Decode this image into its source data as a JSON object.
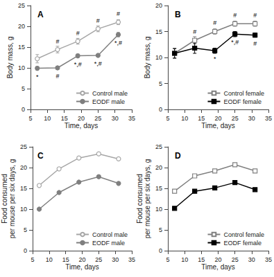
{
  "chart_data": [
    {
      "type": "line",
      "title": "A",
      "x_label": "Time, days",
      "y_label": "Body mass, g",
      "xlim": [
        5,
        35
      ],
      "xticks": [
        5,
        10,
        15,
        20,
        25,
        30,
        35
      ],
      "ylim": [
        0,
        25
      ],
      "yticks": [
        0,
        5,
        10,
        15,
        20,
        25
      ],
      "grid": false,
      "legend": "lower right",
      "series": [
        {
          "name": "Control male",
          "color": "#a6a6a6",
          "marker": "circle_open",
          "x": [
            7,
            13,
            19,
            25,
            31
          ],
          "values": [
            12.2,
            14.4,
            16.4,
            19.4,
            21.0
          ],
          "errors": [
            1.0,
            0.8,
            0.7,
            0.7,
            0.6
          ],
          "annotations": [
            null,
            "#",
            "#",
            "#",
            "#"
          ]
        },
        {
          "name": "EODF male",
          "color": "#7f7f7f",
          "marker": "circle",
          "x": [
            7,
            13,
            19,
            25,
            31
          ],
          "values": [
            9.9,
            10.0,
            12.9,
            13.0,
            18.0
          ],
          "errors": [
            0.4,
            0.4,
            0.4,
            0.3,
            0.5
          ],
          "annotations": [
            "*",
            "#",
            "*,#",
            "*,#",
            "*,#"
          ]
        }
      ]
    },
    {
      "type": "line",
      "title": "B",
      "x_label": "Time, days",
      "y_label": "Body mass, g",
      "xlim": [
        5,
        35
      ],
      "xticks": [
        5,
        10,
        15,
        20,
        25,
        30,
        35
      ],
      "ylim": [
        0,
        20
      ],
      "yticks": [
        0,
        5,
        10,
        15,
        20
      ],
      "grid": false,
      "legend": "lower right",
      "series": [
        {
          "name": "Control female",
          "color": "#808080",
          "marker": "square_open",
          "x": [
            7,
            13,
            19,
            25,
            31
          ],
          "values": [
            10.8,
            13.3,
            15.0,
            16.5,
            16.5
          ],
          "errors": [
            1.0,
            0.7,
            0.5,
            0.5,
            0.5
          ],
          "annotations": [
            null,
            "#",
            "#",
            "#",
            "#"
          ]
        },
        {
          "name": "EODF female",
          "color": "#000000",
          "marker": "square",
          "x": [
            7,
            13,
            19,
            25,
            31
          ],
          "values": [
            10.8,
            11.8,
            11.3,
            14.5,
            14.3
          ],
          "errors": [
            0.9,
            1.0,
            0.5,
            0.5,
            0.4
          ],
          "annotations": [
            null,
            null,
            "*",
            "*,#",
            "#"
          ]
        }
      ]
    },
    {
      "type": "line",
      "title": "C",
      "x_label": "Time, days",
      "y_label": "Food consumed\nper mouse per six days, g",
      "xlim": [
        5,
        35
      ],
      "xticks": [
        5,
        10,
        15,
        20,
        25,
        30,
        35
      ],
      "ylim": [
        0,
        25
      ],
      "yticks": [
        0,
        5,
        10,
        15,
        20,
        25
      ],
      "grid": false,
      "legend": "lower right",
      "series": [
        {
          "name": "Control male",
          "color": "#a6a6a6",
          "marker": "circle_open",
          "x": [
            7,
            13,
            19,
            25,
            31
          ],
          "values": [
            15.7,
            19.7,
            22.3,
            23.3,
            22.1
          ]
        },
        {
          "name": "EODF male",
          "color": "#7f7f7f",
          "marker": "circle",
          "x": [
            7,
            13,
            19,
            25,
            31
          ],
          "values": [
            10.0,
            14.0,
            16.5,
            17.8,
            16.2
          ]
        }
      ]
    },
    {
      "type": "line",
      "title": "D",
      "x_label": "Time, days",
      "y_label": "Food consumed\nper mouse per six days, g",
      "xlim": [
        5,
        35
      ],
      "xticks": [
        5,
        10,
        15,
        20,
        25,
        30,
        35
      ],
      "ylim": [
        0,
        25
      ],
      "yticks": [
        0,
        5,
        10,
        15,
        20,
        25
      ],
      "grid": false,
      "legend": "lower right",
      "series": [
        {
          "name": "Control female",
          "color": "#808080",
          "marker": "square_open",
          "x": [
            7,
            13,
            19,
            25,
            31
          ],
          "values": [
            14.3,
            18.0,
            19.2,
            20.7,
            19.2
          ]
        },
        {
          "name": "EODF female",
          "color": "#000000",
          "marker": "square",
          "x": [
            7,
            13,
            19,
            25,
            31
          ],
          "values": [
            10.2,
            14.3,
            15.1,
            16.4,
            14.7
          ]
        }
      ]
    }
  ]
}
